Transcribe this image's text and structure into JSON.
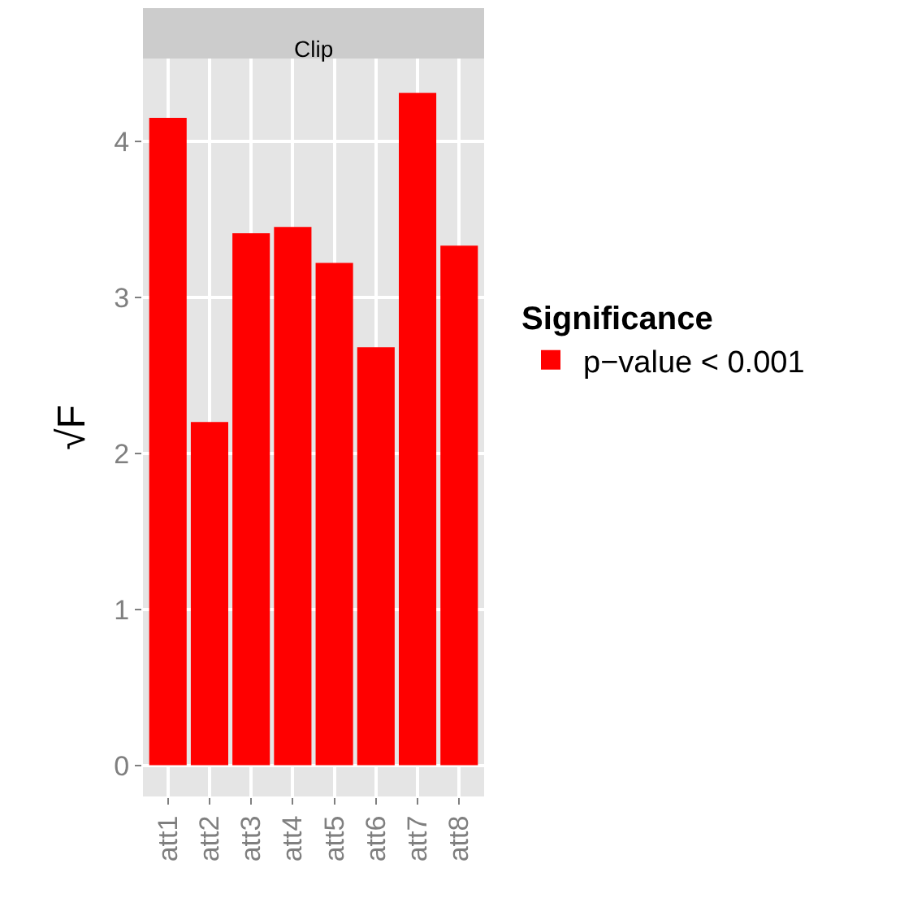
{
  "chart_data": {
    "type": "bar",
    "title": "Clip",
    "ylabel": "√F",
    "legend_title": "Significance",
    "categories": [
      "att1",
      "att2",
      "att3",
      "att4",
      "att5",
      "att6",
      "att7",
      "att8"
    ],
    "series": [
      {
        "name": "p−value < 0.001",
        "color": "#ff0000",
        "values": [
          4.15,
          2.2,
          3.41,
          3.45,
          3.22,
          2.68,
          4.31,
          3.33
        ]
      }
    ],
    "ylim": [
      -0.2,
      4.53
    ],
    "yticks": [
      0,
      1,
      2,
      3,
      4
    ],
    "grid": true,
    "legend": "right"
  }
}
